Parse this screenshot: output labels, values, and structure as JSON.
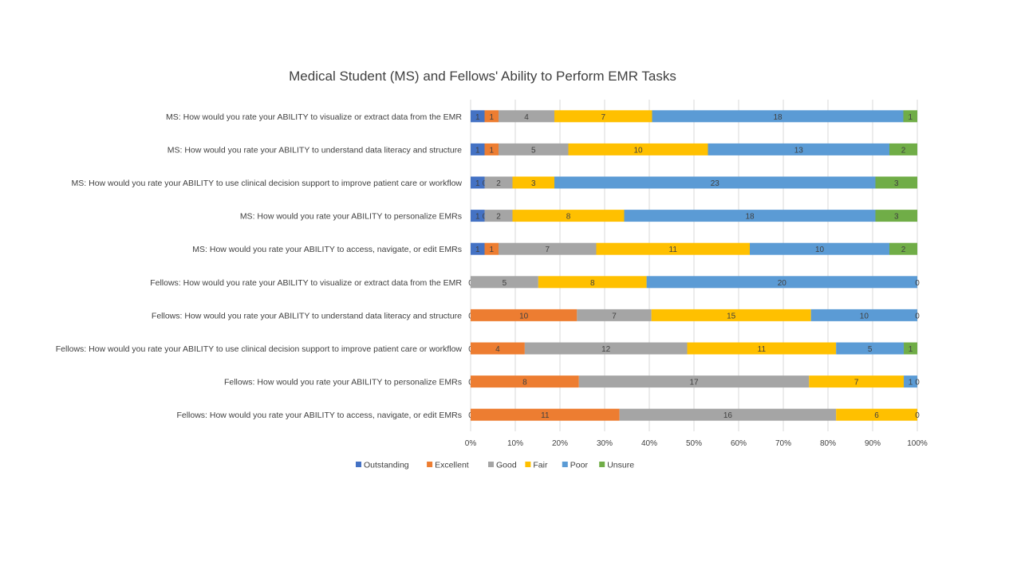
{
  "chart_data": {
    "type": "bar",
    "orientation": "horizontal",
    "stacking": "percent",
    "title": "Medical Student (MS) and Fellows' Ability to Perform EMR Tasks",
    "categories": [
      "MS: How would you rate your ABILITY to  visualize or extract data from the EMR",
      "MS: How would you rate your ABILITY to understand data literacy and structure",
      "MS: How would you rate your ABILITY to use clinical decision support to improve patient care or workflow",
      "MS: How would you rate your ABILITY to personalize EMRs",
      "MS: How would you rate your ABILITY to access, navigate, or edit EMRs",
      "Fellows: How would you rate your ABILITY to  visualize or extract data from the EMR",
      "Fellows: How would you rate your ABILITY to understand data literacy and structure",
      "Fellows: How would you rate your ABILITY to use clinical decision support to improve patient care or workflow",
      "Fellows: How would you rate your ABILITY to personalize EMRs",
      "Fellows: How would you rate your ABILITY to access, navigate, or edit EMRs"
    ],
    "series": [
      {
        "name": "Outstanding",
        "color": "#4472C4",
        "values": [
          1,
          1,
          1,
          1,
          1,
          0,
          0,
          0,
          0,
          0
        ]
      },
      {
        "name": "Excellent",
        "color": "#ED7D31",
        "values": [
          1,
          1,
          0,
          0,
          1,
          0,
          10,
          4,
          8,
          11
        ]
      },
      {
        "name": "Good",
        "color": "#A5A5A5",
        "values": [
          4,
          5,
          2,
          2,
          7,
          5,
          7,
          12,
          17,
          16
        ]
      },
      {
        "name": "Fair",
        "color": "#FFC000",
        "values": [
          7,
          10,
          3,
          8,
          11,
          8,
          15,
          11,
          7,
          6
        ]
      },
      {
        "name": "Poor",
        "color": "#5B9BD5",
        "values": [
          18,
          13,
          23,
          18,
          10,
          20,
          10,
          5,
          1,
          0
        ]
      },
      {
        "name": "Unsure",
        "color": "#70AD47",
        "values": [
          1,
          2,
          3,
          3,
          2,
          0,
          0,
          1,
          0,
          0
        ]
      }
    ],
    "x_ticks": [
      "0%",
      "10%",
      "20%",
      "30%",
      "40%",
      "50%",
      "60%",
      "70%",
      "80%",
      "90%",
      "100%"
    ],
    "xlim": [
      0,
      100
    ],
    "grid": true,
    "legend_position": "bottom"
  }
}
